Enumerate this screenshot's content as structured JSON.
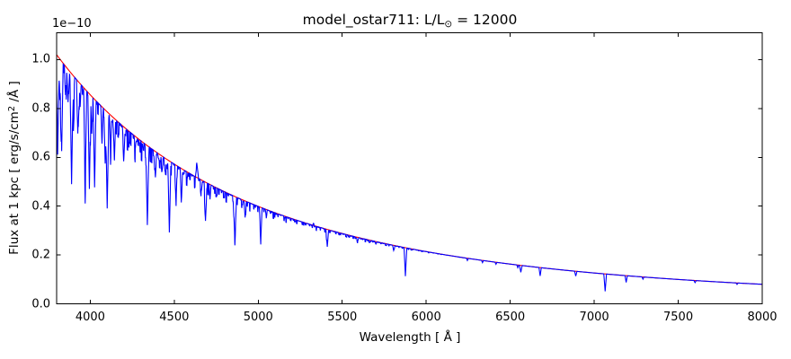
{
  "chart_data": {
    "type": "line",
    "title": "model_ostar711: L/L⊙ = 12000",
    "xlabel": "Wavelength [ Å ]",
    "ylabel": "Flux at 1 kpc [ erg/s/cm² /Å ]",
    "y_offset_text": "1e−10",
    "text": {
      "title_pre": "model_ostar711: L/L",
      "title_sub": "⊙",
      "title_post": " = 12000",
      "ylabel_pre": "Flux at 1 kpc [ erg/s/cm",
      "ylabel_sup": "2",
      "ylabel_post": " /Å ]"
    },
    "xlim": [
      3800,
      8000
    ],
    "ylim": [
      0,
      1.11
    ],
    "xticks": [
      4000,
      4500,
      5000,
      5500,
      6000,
      6500,
      7000,
      7500,
      8000
    ],
    "xtick_labels": [
      "4000",
      "4500",
      "5000",
      "5500",
      "6000",
      "6500",
      "7000",
      "7500",
      "8000"
    ],
    "yticks": [
      0.0,
      0.2,
      0.4,
      0.6,
      0.8,
      1.0
    ],
    "ytick_labels": [
      "0.0",
      "0.2",
      "0.4",
      "0.6",
      "0.8",
      "1.0"
    ],
    "grid": false,
    "legend": null,
    "colors": {
      "spectrum": "#0000ff",
      "continuum": "#ff0000",
      "axes": "#000000",
      "background": "#ffffff"
    },
    "series": [
      {
        "name": "continuum-fit",
        "color": "#ff0000",
        "model": "powerlaw",
        "flux_at_3800_1e10": 1.02,
        "flux_at_8000_1e10": 0.08,
        "wl_ref_A": 3800,
        "alpha": 3.42
      },
      {
        "name": "spectrum",
        "color": "#0000ff",
        "model": "continuum-with-lines",
        "lines_note": "each entry: [wavelength_A, line_bottom_as_fraction_of_continuum (>1 means emission), halfwidth_A]",
        "lines": [
          [
            3806,
            0.62,
            9
          ],
          [
            3820,
            0.84,
            7
          ],
          [
            3830,
            0.63,
            9
          ],
          [
            3853,
            0.88,
            7
          ],
          [
            3868,
            0.86,
            7
          ],
          [
            3889,
            0.52,
            10
          ],
          [
            3900,
            0.88,
            6
          ],
          [
            3926,
            0.78,
            7
          ],
          [
            3940,
            0.9,
            6
          ],
          [
            3970,
            0.54,
            9
          ],
          [
            3995,
            0.55,
            9
          ],
          [
            4009,
            0.82,
            7
          ],
          [
            4026,
            0.57,
            9
          ],
          [
            4070,
            0.84,
            7
          ],
          [
            4089,
            0.76,
            7
          ],
          [
            4101,
            0.5,
            10
          ],
          [
            4121,
            0.8,
            7
          ],
          [
            4144,
            0.78,
            7
          ],
          [
            4200,
            0.82,
            8
          ],
          [
            4267,
            0.93,
            6
          ],
          [
            4340,
            0.53,
            10
          ],
          [
            4387,
            0.85,
            7
          ],
          [
            4426,
            0.93,
            6
          ],
          [
            4471,
            0.5,
            9
          ],
          [
            4511,
            0.74,
            7
          ],
          [
            4542,
            0.75,
            7
          ],
          [
            4634,
            1.12,
            11
          ],
          [
            4662,
            0.92,
            6
          ],
          [
            4686,
            0.73,
            8
          ],
          [
            4713,
            0.88,
            6
          ],
          [
            4861,
            0.59,
            10
          ],
          [
            4922,
            0.84,
            7
          ],
          [
            5015,
            0.66,
            8
          ],
          [
            5048,
            0.92,
            6
          ],
          [
            5330,
            1.05,
            5
          ],
          [
            5411,
            0.77,
            8
          ],
          [
            5592,
            0.94,
            6
          ],
          [
            5700,
            0.96,
            6
          ],
          [
            5806,
            0.93,
            7
          ],
          [
            5876,
            0.5,
            8
          ],
          [
            6245,
            0.95,
            6
          ],
          [
            6335,
            0.95,
            6
          ],
          [
            6415,
            0.95,
            6
          ],
          [
            6545,
            0.93,
            6
          ],
          [
            6563,
            0.82,
            8
          ],
          [
            6678,
            0.77,
            7
          ],
          [
            6890,
            0.85,
            7
          ],
          [
            7065,
            0.42,
            8
          ],
          [
            7190,
            0.76,
            7
          ],
          [
            7290,
            0.92,
            6
          ],
          [
            7600,
            0.91,
            7
          ],
          [
            7850,
            0.93,
            6
          ]
        ]
      }
    ]
  }
}
